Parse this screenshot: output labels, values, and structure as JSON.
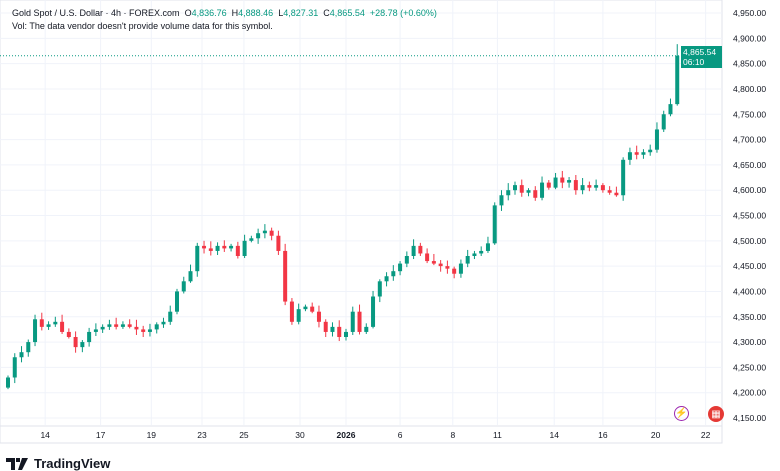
{
  "header": {
    "symbol": "Gold Spot / U.S. Dollar · 4h · FOREX.com",
    "open_label": "O",
    "open": "4,836.76",
    "high_label": "H",
    "high": "4,888.46",
    "low_label": "L",
    "low": "4,827.31",
    "close_label": "C",
    "close": "4,865.54",
    "change": "+28.78 (+0.60%)"
  },
  "volume_note": "Vol: The data vendor doesn't provide volume data for this symbol.",
  "price_label": {
    "price": "4,865.54",
    "countdown": "06:10"
  },
  "logo_text": "TradingView",
  "colors": {
    "up": "#089981",
    "down": "#f23645",
    "grid": "#f0f3fa"
  },
  "chart_data": {
    "type": "candlestick",
    "title": "Gold Spot / U.S. Dollar · 4h",
    "ylim": [
      4130,
      4970
    ],
    "y_ticks": [
      4150,
      4200,
      4250,
      4300,
      4350,
      4400,
      4450,
      4500,
      4550,
      4600,
      4650,
      4700,
      4750,
      4800,
      4850,
      4900,
      4950
    ],
    "y_tick_labels": [
      "4,150.00",
      "4,200.00",
      "4,250.00",
      "4,300.00",
      "4,350.00",
      "4,400.00",
      "4,450.00",
      "4,500.00",
      "4,550.00",
      "4,600.00",
      "4,650.00",
      "4,700.00",
      "4,750.00",
      "4,800.00",
      "4,850.00",
      "4,900.00",
      "4,950.00"
    ],
    "x_tick_labels": [
      "14",
      "17",
      "19",
      "23",
      "25",
      "30",
      "2026",
      "6",
      "8",
      "11",
      "14",
      "16",
      "20",
      "22"
    ],
    "x_tick_index": [
      5.5,
      13.7,
      21.2,
      28.7,
      34.9,
      43.2,
      50,
      58,
      65.8,
      72.4,
      80.8,
      88,
      95.8,
      103.2
    ],
    "start_open": 4210,
    "closes": [
      4230,
      4270,
      4280,
      4300,
      4345,
      4330,
      4335,
      4340,
      4320,
      4310,
      4290,
      4300,
      4320,
      4325,
      4330,
      4335,
      4330,
      4335,
      4330,
      4325,
      4320,
      4325,
      4335,
      4340,
      4360,
      4400,
      4420,
      4440,
      4490,
      4485,
      4480,
      4490,
      4485,
      4490,
      4470,
      4500,
      4505,
      4515,
      4520,
      4510,
      4480,
      4380,
      4340,
      4365,
      4370,
      4360,
      4340,
      4320,
      4330,
      4310,
      4320,
      4360,
      4320,
      4330,
      4390,
      4420,
      4430,
      4440,
      4455,
      4470,
      4490,
      4475,
      4460,
      4455,
      4450,
      4445,
      4435,
      4455,
      4470,
      4475,
      4480,
      4495,
      4570,
      4590,
      4600,
      4610,
      4595,
      4600,
      4585,
      4615,
      4605,
      4625,
      4615,
      4620,
      4600,
      4610,
      4605,
      4610,
      4600,
      4595,
      4590,
      4660,
      4675,
      4670,
      4675,
      4680,
      4720,
      4750,
      4770,
      4865.54
    ],
    "last_high": 4888.46,
    "last_price": 4865.54
  }
}
